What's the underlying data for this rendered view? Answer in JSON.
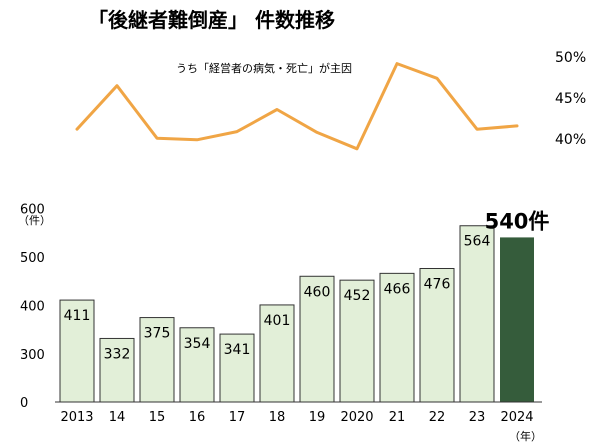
{
  "chart_data": [
    {
      "type": "line",
      "title": "「後継者難倒産」 件数推移",
      "subtitle": "うち「経営者の病気・死亡」が主因",
      "x": [
        "2013",
        "14",
        "15",
        "16",
        "17",
        "18",
        "19",
        "2020",
        "21",
        "22",
        "23",
        "2024"
      ],
      "values": [
        41.2,
        46.5,
        40.1,
        39.9,
        40.9,
        43.6,
        40.8,
        38.8,
        49.2,
        47.4,
        41.2,
        41.6
      ],
      "y_ticks": [
        "50%",
        "45%",
        "40%"
      ],
      "ylim": [
        40,
        50
      ],
      "color": "#f0a545"
    },
    {
      "type": "bar",
      "categories": [
        "2013",
        "14",
        "15",
        "16",
        "17",
        "18",
        "19",
        "2020",
        "21",
        "22",
        "23",
        "2024"
      ],
      "values": [
        411,
        332,
        375,
        354,
        341,
        401,
        460,
        452,
        466,
        476,
        564,
        540
      ],
      "bar_labels": [
        "411",
        "332",
        "375",
        "354",
        "341",
        "401",
        "460",
        "452",
        "466",
        "476",
        "564",
        "540件"
      ],
      "y_ticks": [
        "0",
        "300",
        "400",
        "500",
        "600"
      ],
      "ylim": [
        0,
        600
      ],
      "y_unit": "（件）",
      "x_unit": "（年）",
      "colors": {
        "bar": "#e2efd8",
        "bar_edge": "#333333",
        "highlight": "#355c3b"
      }
    }
  ]
}
